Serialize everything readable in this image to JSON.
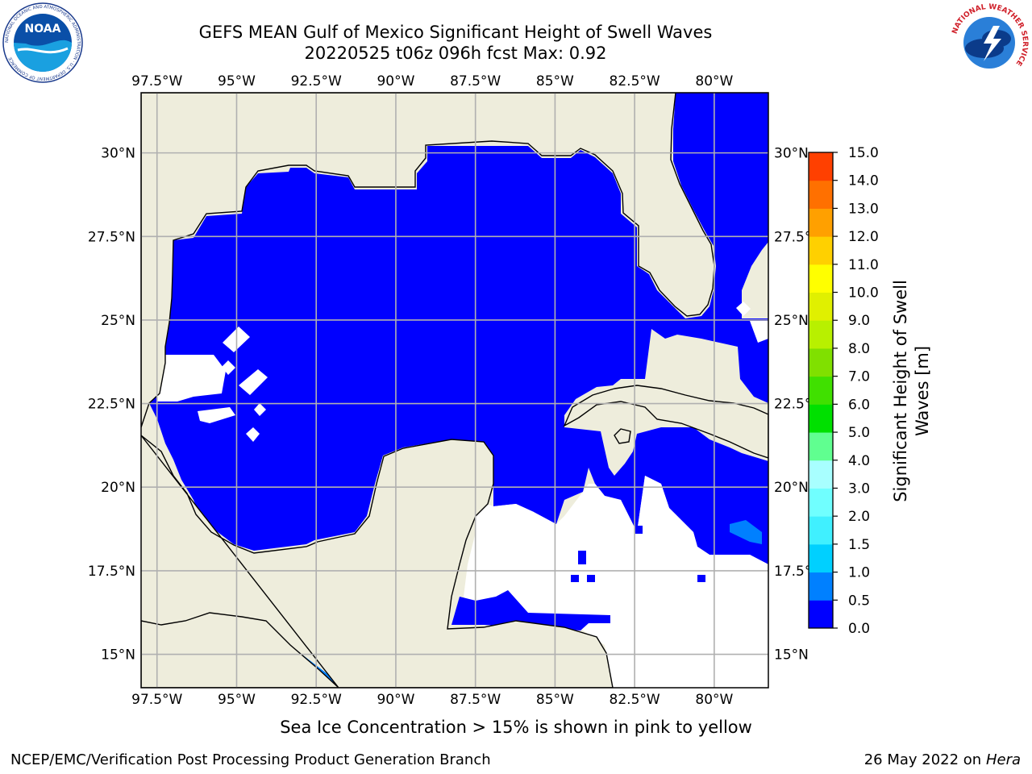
{
  "header": {
    "title_line1": "GEFS MEAN Gulf of Mexico Significant Height of Swell Waves",
    "title_line2": "20220525 t06z 096h fcst   Max: 0.92"
  },
  "logos": {
    "left_name": "NOAA",
    "left_ring_text": "NATIONAL OCEANIC AND ATMOSPHERIC ADMINISTRATION · U.S. DEPARTMENT OF COMMERCE",
    "right_ring_text": "NATIONAL WEATHER SERVICE"
  },
  "map": {
    "lon_labels": [
      "97.5°W",
      "95°W",
      "92.5°W",
      "90°W",
      "87.5°W",
      "85°W",
      "82.5°W",
      "80°W"
    ],
    "lon_values": [
      -97.5,
      -95,
      -92.5,
      -90,
      -87.5,
      -85,
      -82.5,
      -80
    ],
    "lat_labels": [
      "30°N",
      "27.5°N",
      "25°N",
      "22.5°N",
      "20°N",
      "17.5°N",
      "15°N"
    ],
    "lat_values": [
      30,
      27.5,
      25,
      22.5,
      20,
      17.5,
      15
    ],
    "extent": {
      "lon_min": -98,
      "lon_max": -78.3,
      "lat_min": 14,
      "lat_max": 31.8
    },
    "colors": {
      "land": "#eeeddc",
      "ocean_fill": "#0000ff",
      "deep_swell": "#0080ff",
      "grid": "#b0b0b0"
    }
  },
  "colorbar": {
    "label_line1": "Significant Height of Swell",
    "label_line2": "Waves [m]",
    "tick_labels": [
      "0.0",
      "0.5",
      "1.0",
      "1.5",
      "2.0",
      "3.0",
      "4.0",
      "5.0",
      "6.0",
      "7.0",
      "8.0",
      "9.0",
      "10.0",
      "11.0",
      "12.0",
      "13.0",
      "14.0",
      "15.0"
    ],
    "colors": [
      "#0000ff",
      "#0080ff",
      "#00d0ff",
      "#40f0ff",
      "#70ffff",
      "#a8ffff",
      "#60ff90",
      "#00e000",
      "#40e000",
      "#80e000",
      "#b8f000",
      "#e0f000",
      "#ffff00",
      "#ffd000",
      "#ffa000",
      "#ff7000",
      "#ff4000",
      "#ff0000"
    ]
  },
  "note": "Sea Ice Concentration > 15% is shown in pink to yellow",
  "footer": {
    "left": "NCEP/EMC/Verification Post Processing Product Generation Branch",
    "right_date": "26 May 2022 on",
    "right_host": "Hera"
  }
}
